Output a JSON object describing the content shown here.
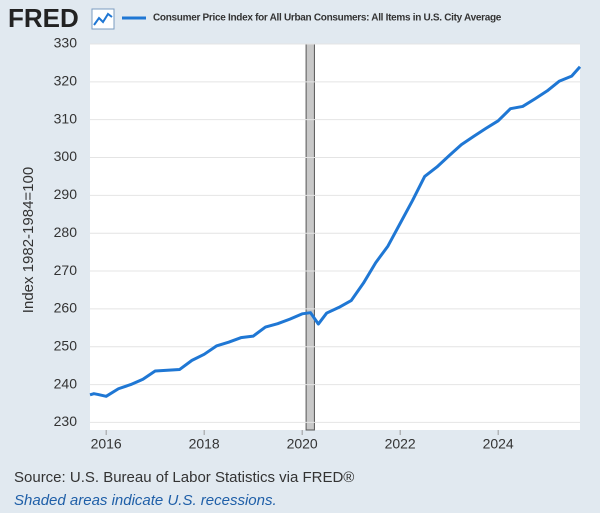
{
  "chart_data": {
    "type": "line",
    "logo": "FRED",
    "ylabel": "Index 1982-1984=100",
    "source": "Source: U.S. Bureau of Labor Statistics via FRED®",
    "note": "Shaded areas indicate U.S. recessions.",
    "x": [
      2015.67,
      2015.75,
      2015.83,
      2016.0,
      2016.25,
      2016.5,
      2016.75,
      2017.0,
      2017.25,
      2017.5,
      2017.75,
      2018.0,
      2018.25,
      2018.5,
      2018.75,
      2019.0,
      2019.25,
      2019.5,
      2019.75,
      2020.0,
      2020.17,
      2020.33,
      2020.5,
      2020.75,
      2021.0,
      2021.25,
      2021.5,
      2021.75,
      2022.0,
      2022.25,
      2022.5,
      2022.75,
      2023.0,
      2023.25,
      2023.5,
      2023.75,
      2024.0,
      2024.25,
      2024.5,
      2024.75,
      2025.0,
      2025.25,
      2025.5,
      2025.67
    ],
    "series": [
      {
        "name": "Consumer Price Index for All Urban Consumers: All Items in U.S. City Average",
        "color": "#1f77d4",
        "values": [
          237.3,
          237.6,
          237.4,
          236.9,
          238.9,
          240.0,
          241.4,
          243.6,
          243.8,
          244.0,
          246.4,
          248.0,
          250.2,
          251.2,
          252.4,
          252.8,
          255.2,
          256.1,
          257.3,
          258.7,
          259.0,
          256.0,
          258.9,
          260.4,
          262.2,
          266.8,
          272.2,
          276.6,
          282.6,
          288.6,
          295.0,
          297.5,
          300.5,
          303.4,
          305.6,
          307.7,
          309.7,
          312.9,
          313.5,
          315.5,
          317.6,
          320.2,
          321.5,
          324.0
        ]
      }
    ],
    "recessions": [
      [
        2020.08,
        2020.25
      ]
    ],
    "xlim": [
      2015.67,
      2025.67
    ],
    "xticks": [
      2016,
      2018,
      2020,
      2022,
      2024
    ],
    "ylim": [
      228,
      330
    ],
    "yticks": [
      230,
      240,
      250,
      260,
      270,
      280,
      290,
      300,
      310,
      320,
      330
    ],
    "grid": true
  }
}
